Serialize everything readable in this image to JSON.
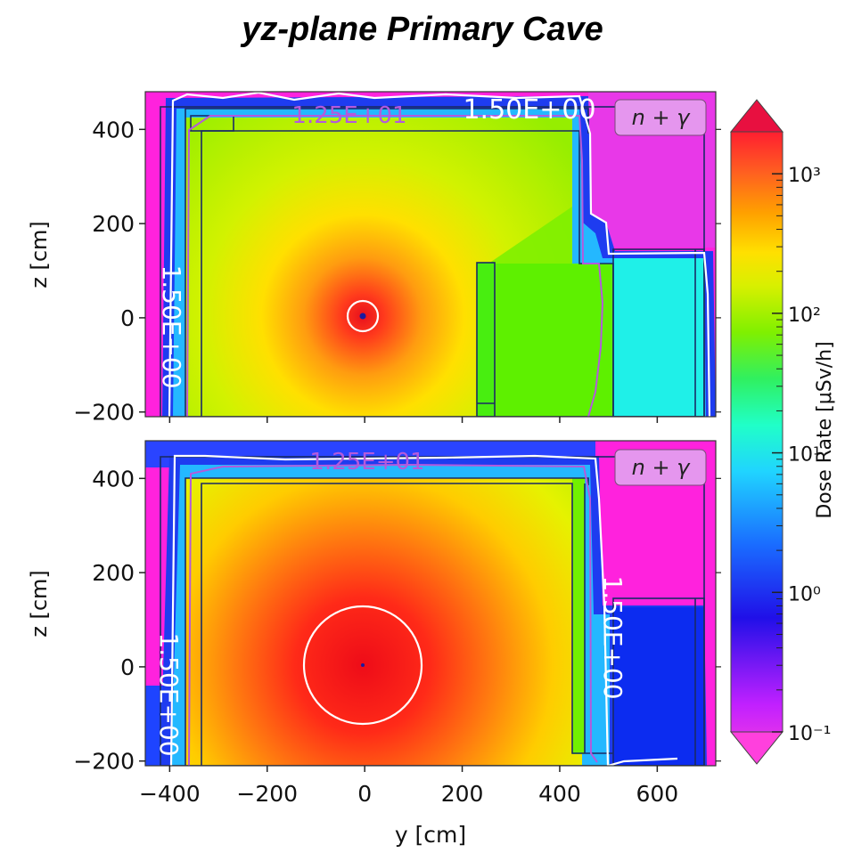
{
  "figure_title": "yz-plane Primary Cave",
  "colors": {
    "background": "#ff22dd",
    "floor_far": "#b7f000",
    "room": "#8cf000",
    "wall_blue": "#1e44ff",
    "wall_cyan": "#22d8ff",
    "side_room_top": "#1ff0e8",
    "side_room_bottom": "#0c2cf0",
    "contour_white": "#ffffff",
    "contour_purple": "#b45adc",
    "source": "#1a1aa0",
    "outline": "#1a2a66",
    "label_box": "#e596ee"
  },
  "chart_data": [
    {
      "type": "heatmap",
      "panel": "top",
      "xlabel": "",
      "ylabel": "z [cm]",
      "xlim": [
        -450,
        720
      ],
      "ylim": [
        -210,
        480
      ],
      "yticks": [
        -200,
        0,
        200,
        400
      ],
      "ytick_labels": [
        "−200",
        "0",
        "200",
        "400"
      ],
      "label_box": "n + γ",
      "contours": [
        {
          "level": "1.25E+01",
          "color": "#b45adc"
        },
        {
          "level": "1.50E+00",
          "color": "#ffffff"
        }
      ],
      "contour_labels": [
        "1.25E+01",
        "1.50E+00",
        "1.50E+00"
      ],
      "source": {
        "y": 0,
        "z": 0
      },
      "inner_white_contour_radius_cm": 30
    },
    {
      "type": "heatmap",
      "panel": "bottom",
      "xlabel": "y [cm]",
      "ylabel": "z [cm]",
      "xlim": [
        -450,
        720
      ],
      "ylim": [
        -210,
        480
      ],
      "xticks": [
        -400,
        -200,
        0,
        200,
        400,
        600
      ],
      "xtick_labels": [
        "−400",
        "−200",
        "0",
        "200",
        "400",
        "600"
      ],
      "yticks": [
        -200,
        0,
        200,
        400
      ],
      "ytick_labels": [
        "−200",
        "0",
        "200",
        "400"
      ],
      "label_box": "n + γ",
      "contours": [
        {
          "level": "1.25E+01",
          "color": "#b45adc"
        },
        {
          "level": "1.50E+00",
          "color": "#ffffff"
        }
      ],
      "contour_labels": [
        "1.25E+01",
        "1.50E+00",
        "1.50E+00"
      ],
      "source": {
        "y": 0,
        "z": 0
      },
      "inner_white_contour_radius_cm": 120
    },
    {
      "type": "colorbar",
      "label": "Dose Rate [μSv/h]",
      "scale": "log",
      "range": [
        0.1,
        2000
      ],
      "tick_values": [
        0.1,
        1,
        10,
        100,
        1000
      ],
      "tick_labels": [
        "10⁻¹",
        "10⁰",
        "10¹",
        "10²",
        "10³"
      ],
      "colors": [
        "#ff40dd",
        "#b000ff",
        "#1010e0",
        "#1a7cff",
        "#20d0ff",
        "#20ffc0",
        "#30f060",
        "#80f000",
        "#d8f000",
        "#ffe000",
        "#ffa000",
        "#ff6020",
        "#ff2030",
        "#e81040"
      ]
    }
  ]
}
